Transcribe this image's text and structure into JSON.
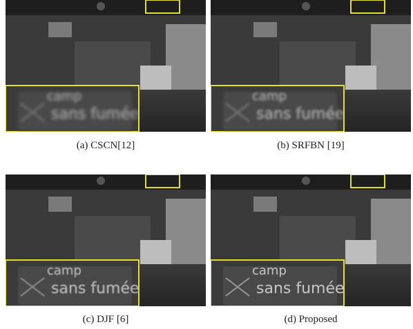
{
  "panels": [
    {
      "caption": "(a) CSCN[12]",
      "inset_text_top": "camp",
      "inset_text_bottom": "sans fumée",
      "blur": 2.2,
      "noise": 0.0
    },
    {
      "caption": "(b) SRFBN [19]",
      "inset_text_top": "camp",
      "inset_text_bottom": "sans fumée",
      "blur": 1.6,
      "noise": 0.0
    },
    {
      "caption": "(c) DJF [6]",
      "inset_text_top": "camp",
      "inset_text_bottom": "sans fumée",
      "blur": 0.6,
      "noise": 0.2
    },
    {
      "caption": "(d)  Proposed",
      "inset_text_top": "camp",
      "inset_text_bottom": "sans fumée",
      "blur": 0.3,
      "noise": 0.0
    }
  ],
  "colors": {
    "highlight": "#e6df2a",
    "caption": "#222222"
  }
}
